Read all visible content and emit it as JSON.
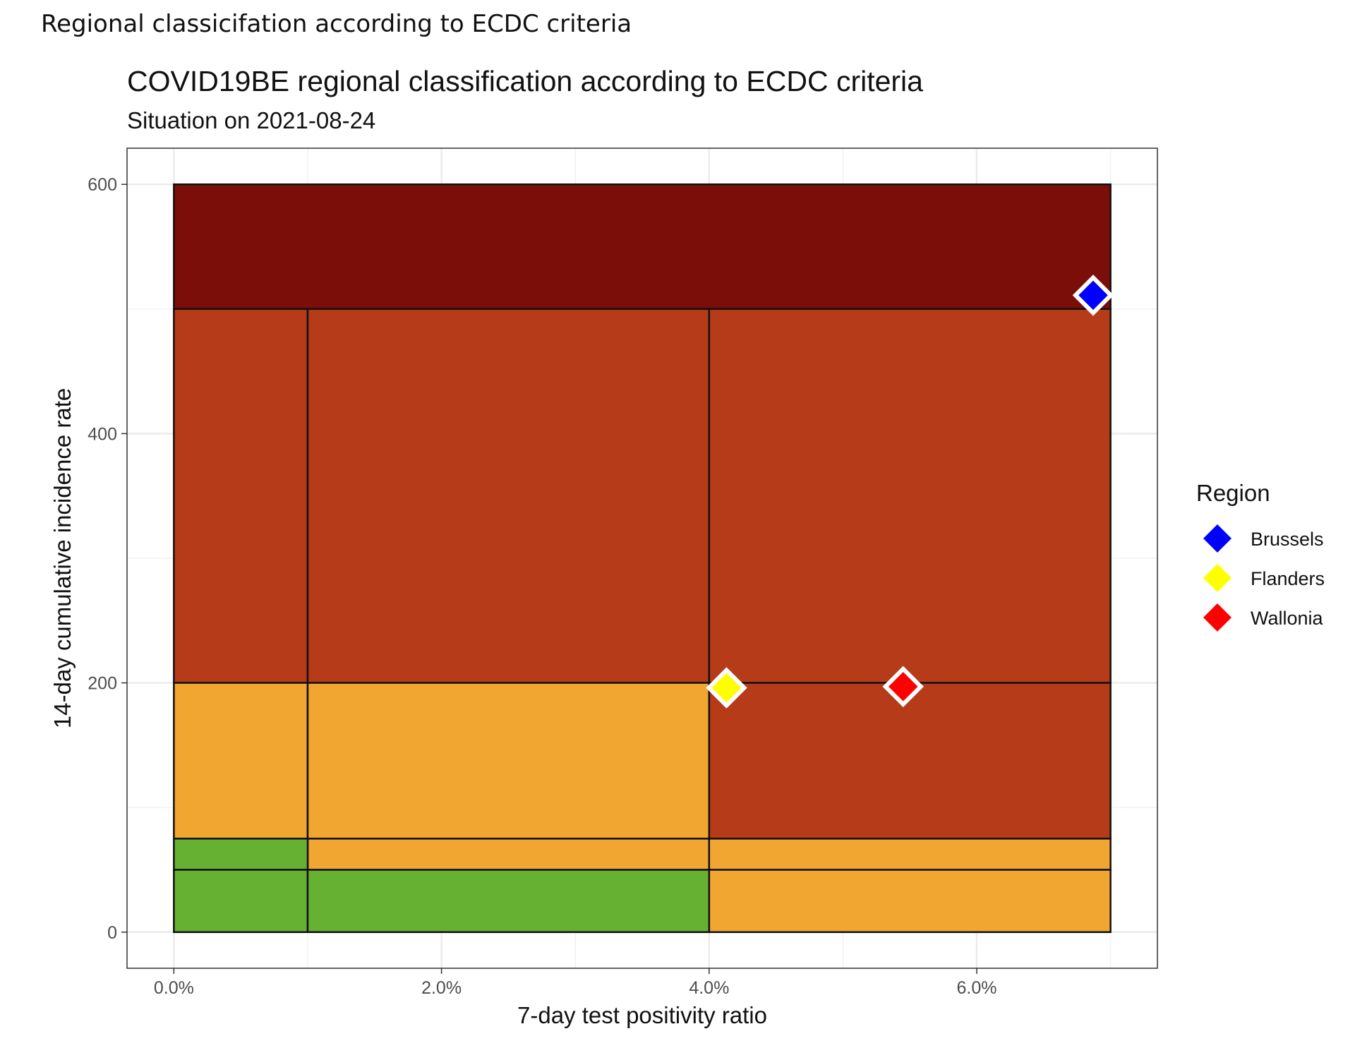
{
  "page": {
    "heading": "Regional classicifation according to ECDC criteria"
  },
  "chart_data": {
    "type": "scatter",
    "title": "COVID19BE regional classification according to ECDC criteria",
    "subtitle": "Situation on 2021-08-24",
    "xlabel": "7-day test positivity ratio",
    "ylabel": "14-day cumulative incidence rate",
    "xlim": [
      -0.0035,
      0.0735
    ],
    "ylim": [
      -29,
      629
    ],
    "x_ticks": [
      0,
      0.02,
      0.04,
      0.06
    ],
    "x_tick_labels": [
      "0.0%",
      "2.0%",
      "4.0%",
      "6.0%"
    ],
    "y_ticks": [
      0,
      200,
      400,
      600
    ],
    "y_tick_labels": [
      "0",
      "200",
      "400",
      "600"
    ],
    "grid": true,
    "legend": {
      "title": "Region",
      "placement": "right",
      "entries": [
        {
          "label": "Brussels",
          "color": "#0000ff"
        },
        {
          "label": "Flanders",
          "color": "#ffff00"
        },
        {
          "label": "Wallonia",
          "color": "#ff0000"
        }
      ]
    },
    "zones": [
      {
        "xmin": 0,
        "xmax": 0.07,
        "ymin": 500,
        "ymax": 600,
        "color": "#7b0e08"
      },
      {
        "xmin": 0,
        "xmax": 0.01,
        "ymin": 200,
        "ymax": 500,
        "color": "#b63b19"
      },
      {
        "xmin": 0.01,
        "xmax": 0.04,
        "ymin": 200,
        "ymax": 500,
        "color": "#b63b19"
      },
      {
        "xmin": 0.04,
        "xmax": 0.07,
        "ymin": 200,
        "ymax": 500,
        "color": "#b63b19"
      },
      {
        "xmin": 0.04,
        "xmax": 0.07,
        "ymin": 75,
        "ymax": 200,
        "color": "#b63b19"
      },
      {
        "xmin": 0,
        "xmax": 0.01,
        "ymin": 75,
        "ymax": 200,
        "color": "#f0a631"
      },
      {
        "xmin": 0.01,
        "xmax": 0.04,
        "ymin": 75,
        "ymax": 200,
        "color": "#f0a631"
      },
      {
        "xmin": 0.01,
        "xmax": 0.04,
        "ymin": 50,
        "ymax": 75,
        "color": "#f0a631"
      },
      {
        "xmin": 0.04,
        "xmax": 0.07,
        "ymin": 50,
        "ymax": 75,
        "color": "#f0a631"
      },
      {
        "xmin": 0.04,
        "xmax": 0.07,
        "ymin": 0,
        "ymax": 50,
        "color": "#f0a631"
      },
      {
        "xmin": 0,
        "xmax": 0.01,
        "ymin": 50,
        "ymax": 75,
        "color": "#66b032"
      },
      {
        "xmin": 0,
        "xmax": 0.01,
        "ymin": 0,
        "ymax": 50,
        "color": "#66b032"
      },
      {
        "xmin": 0.01,
        "xmax": 0.04,
        "ymin": 0,
        "ymax": 50,
        "color": "#66b032"
      }
    ],
    "series": [
      {
        "name": "Brussels",
        "x": 0.0687,
        "y": 511,
        "color": "#0000ff"
      },
      {
        "name": "Flanders",
        "x": 0.0413,
        "y": 196,
        "color": "#ffff00"
      },
      {
        "name": "Wallonia",
        "x": 0.0545,
        "y": 197,
        "color": "#ff0000"
      }
    ]
  }
}
